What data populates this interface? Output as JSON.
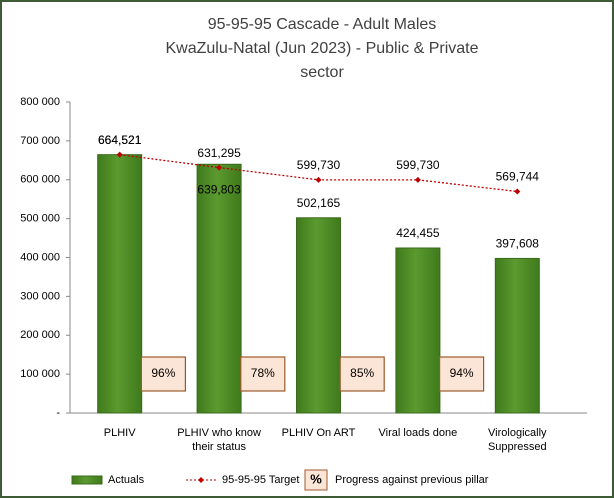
{
  "chart_data": {
    "type": "bar",
    "title": [
      "95-95-95 Cascade - Adult Males",
      "KwaZulu-Natal (Jun 2023) - Public & Private",
      "sector"
    ],
    "categories": [
      "PLHIV",
      "PLHIV who know their status",
      "PLHIV On ART",
      "Viral loads done",
      "Virologically Suppressed"
    ],
    "series": [
      {
        "name": "Actuals",
        "color": "#5b9a2f",
        "type": "bar",
        "values": [
          664521,
          639803,
          502165,
          424455,
          397608
        ],
        "value_labels": [
          "664,521",
          "639,803",
          "502,165",
          "424,455",
          "397,608"
        ]
      },
      {
        "name": "95-95-95 Target",
        "color": "#c00000",
        "type": "line",
        "values": [
          664521,
          631295,
          599730,
          599730,
          569744
        ],
        "value_labels": [
          "664,521",
          "631,295",
          "599,730",
          "599,730",
          "569,744"
        ]
      }
    ],
    "progress": {
      "name": "Progress against previous pillar",
      "symbol": "%",
      "values": [
        96,
        78,
        85,
        94
      ],
      "value_labels": [
        "96%",
        "78%",
        "85%",
        "94%"
      ]
    },
    "ylim": [
      0,
      800000
    ],
    "yticks": [
      {
        "value": 0,
        "label": "-"
      },
      {
        "value": 100000,
        "label": "100 000"
      },
      {
        "value": 200000,
        "label": "200 000"
      },
      {
        "value": 300000,
        "label": "300 000"
      },
      {
        "value": 400000,
        "label": "400 000"
      },
      {
        "value": 500000,
        "label": "500 000"
      },
      {
        "value": 600000,
        "label": "600 000"
      },
      {
        "value": 700000,
        "label": "700 000"
      },
      {
        "value": 800000,
        "label": "800 000"
      }
    ],
    "grid": false,
    "legend": "bottom"
  }
}
